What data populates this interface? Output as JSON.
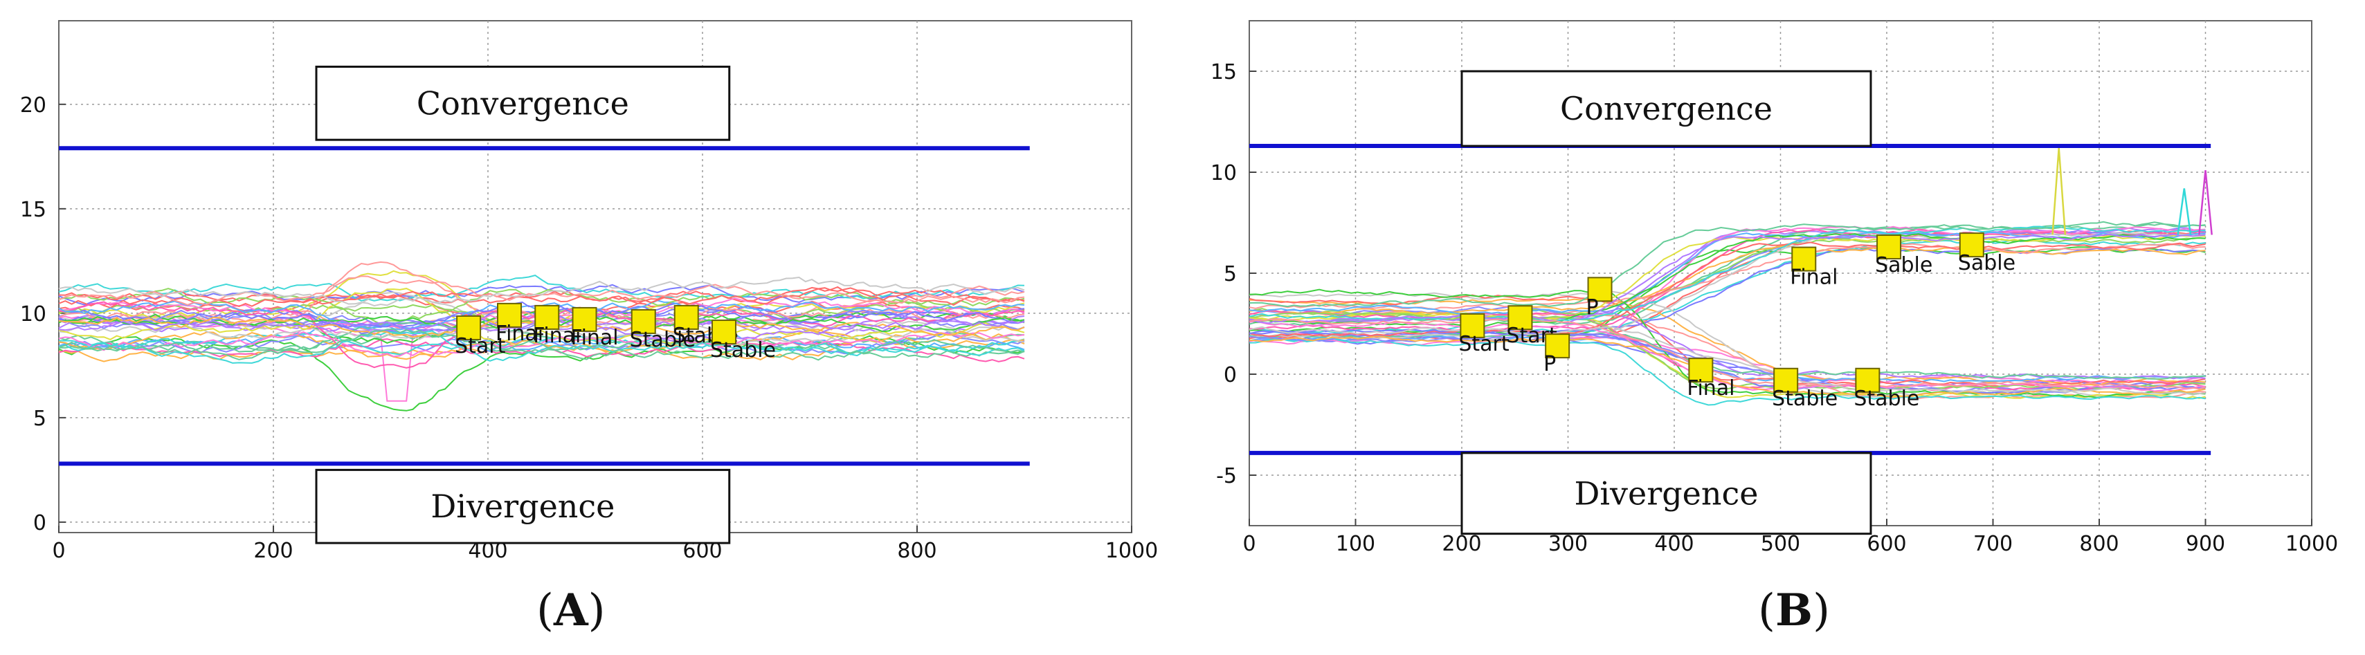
{
  "chart_data": [
    {
      "type": "line",
      "panel_label_open": "(",
      "panel_label_letter": "A",
      "panel_label_close": ")",
      "xlim": [
        0,
        1000
      ],
      "ylim": [
        -0.5,
        24
      ],
      "xticks": [
        0,
        200,
        400,
        600,
        800,
        1000
      ],
      "yticks": [
        0,
        5,
        10,
        15,
        20
      ],
      "grid": true,
      "thresholds": {
        "upper": 17.9,
        "lower": 2.8,
        "color": "#1010d0",
        "x_end": 905
      },
      "boxes": [
        {
          "label": "Convergence",
          "x0": 240,
          "x1": 625,
          "y_bottom": 18.3,
          "y_top": 21.8
        },
        {
          "label": "Divergence",
          "x0": 240,
          "x1": 625,
          "y_bottom": -1.0,
          "y_top": 2.5
        }
      ],
      "series_summary": {
        "count": 40,
        "x_end": 905,
        "band": [
          8.2,
          11.2
        ],
        "disturbance_x": [
          230,
          340
        ],
        "dip_min": 5.8
      },
      "markers": [
        {
          "x": 382,
          "y": 9.3,
          "label": "Start"
        },
        {
          "x": 420,
          "y": 9.9,
          "label": "Final"
        },
        {
          "x": 455,
          "y": 9.8,
          "label": "Final"
        },
        {
          "x": 490,
          "y": 9.7,
          "label": "Final"
        },
        {
          "x": 545,
          "y": 9.6,
          "label": "Stable"
        },
        {
          "x": 585,
          "y": 9.8,
          "label": "Stable"
        },
        {
          "x": 620,
          "y": 9.1,
          "label": "Stable"
        }
      ]
    },
    {
      "type": "line",
      "panel_label_open": "(",
      "panel_label_letter": "B",
      "panel_label_close": ")",
      "xlim": [
        0,
        1000
      ],
      "ylim": [
        -7.5,
        17.5
      ],
      "xticks": [
        0,
        100,
        200,
        300,
        400,
        500,
        600,
        700,
        800,
        900,
        1000
      ],
      "yticks": [
        -5,
        0,
        5,
        10,
        15
      ],
      "grid": true,
      "thresholds": {
        "upper": 11.3,
        "lower": -3.9,
        "color": "#1010d0",
        "x_end": 905
      },
      "boxes": [
        {
          "label": "Convergence",
          "x0": 200,
          "x1": 585,
          "y_bottom": 11.3,
          "y_top": 15
        },
        {
          "label": "Divergence",
          "x0": 200,
          "x1": 585,
          "y_bottom": -7.9,
          "y_top": -3.9
        }
      ],
      "series_summary": {
        "count": 40,
        "x_end": 900,
        "split_x": [
          280,
          430
        ],
        "upper_end": 6.9,
        "lower_end": -0.6
      },
      "markers": [
        {
          "x": 210,
          "y": 2.4,
          "label": "Start"
        },
        {
          "x": 255,
          "y": 2.8,
          "label": "Start"
        },
        {
          "x": 290,
          "y": 1.4,
          "label": "P"
        },
        {
          "x": 330,
          "y": 4.2,
          "label": "P"
        },
        {
          "x": 425,
          "y": 0.2,
          "label": "Final"
        },
        {
          "x": 505,
          "y": -0.3,
          "label": "Stable"
        },
        {
          "x": 522,
          "y": 5.7,
          "label": "Final"
        },
        {
          "x": 582,
          "y": -0.3,
          "label": "Stable"
        },
        {
          "x": 602,
          "y": 6.3,
          "label": "Sable"
        },
        {
          "x": 680,
          "y": 6.4,
          "label": "Sable"
        }
      ],
      "spikes": [
        {
          "x": 762,
          "y": 11.2,
          "color": "#d8d840"
        },
        {
          "x": 880,
          "y": 9.2,
          "color": "#30d8d8"
        },
        {
          "x": 900,
          "y": 10.1,
          "color": "#d040d0"
        }
      ]
    }
  ],
  "series_colors": [
    "#ff6a6a",
    "#7a7aff",
    "#3ecf3e",
    "#ff7ad9",
    "#40d8d8",
    "#ffb347",
    "#b07aff",
    "#ff9999",
    "#66cc99",
    "#c8c8c8",
    "#8888ff",
    "#e0e040",
    "#ff5ab0",
    "#5ab0ff",
    "#90d860"
  ]
}
